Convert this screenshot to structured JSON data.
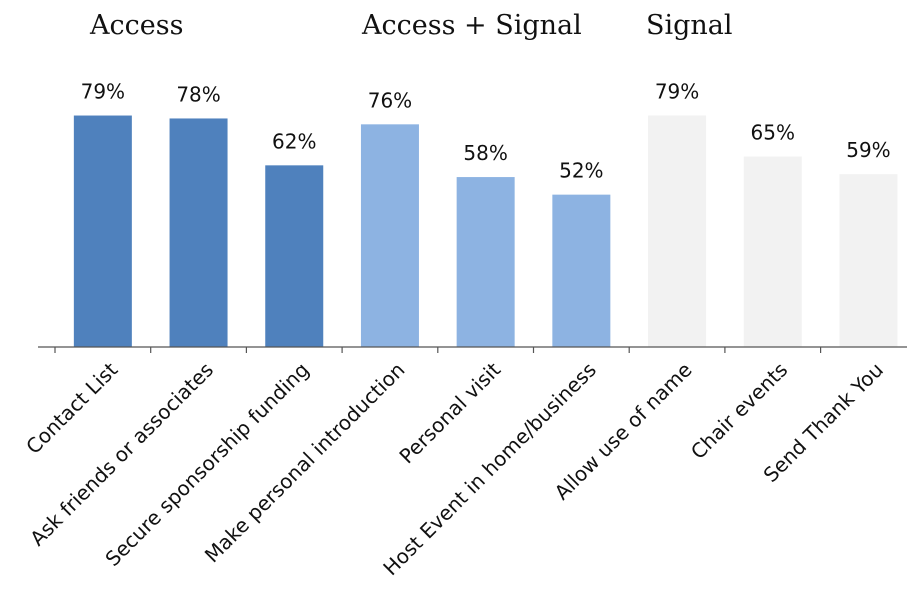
{
  "chart_data": {
    "type": "bar",
    "title": "",
    "xlabel": "",
    "ylabel": "",
    "ylim": [
      0,
      100
    ],
    "value_suffix": "%",
    "grid": false,
    "categories": [
      "Contact List",
      "Ask friends or associates",
      "Secure sponsorship funding",
      "Make personal introduction",
      "Personal visit",
      "Host Event in home/business",
      "Allow use of name",
      "Chair events",
      "Send Thank You"
    ],
    "values": [
      79,
      78,
      62,
      76,
      58,
      52,
      79,
      65,
      59
    ],
    "groups": [
      {
        "label": "Access",
        "color": "#4f81bd",
        "indices": [
          0,
          1,
          2
        ]
      },
      {
        "label": "Access + Signal",
        "color": "#8db3e2",
        "indices": [
          3,
          4,
          5
        ]
      },
      {
        "label": "Signal",
        "color": "#f2f2f2",
        "indices": [
          6,
          7,
          8
        ]
      }
    ]
  }
}
